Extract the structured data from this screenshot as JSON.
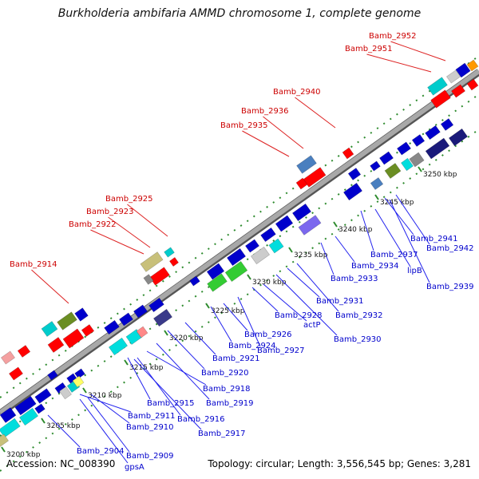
{
  "title": "Burkholderia ambifaria AMMD chromosome 1, complete genome",
  "accession": "Accession: NC_008390",
  "summary": "Topology: circular; Length: 3,556,545 bp; Genes: 3,281",
  "colors": {
    "forward_label": "#cc0000",
    "reverse_label": "#0000cc",
    "leader_forward": "#dd2222",
    "leader_reverse": "#2222ee",
    "backbone": "#999999",
    "tick": "#2e8b2e"
  },
  "position_ticks": [
    "3200 kbp",
    "3205 kbp",
    "3210 kbp",
    "3215 kbp",
    "3220 kbp",
    "3225 kbp",
    "3230 kbp",
    "3235 kbp",
    "3240 kbp",
    "3245 kbp",
    "3250 kbp"
  ],
  "forward_genes": [
    "Bamb_2914",
    "Bamb_2922",
    "Bamb_2923",
    "Bamb_2925",
    "Bamb_2935",
    "Bamb_2936",
    "Bamb_2940",
    "Bamb_2951",
    "Bamb_2952"
  ],
  "reverse_genes": [
    "Bamb_2904",
    "gpsA",
    "Bamb_2909",
    "Bamb_2910",
    "Bamb_2911",
    "Bamb_2915",
    "Bamb_2916",
    "Bamb_2917",
    "Bamb_2918",
    "Bamb_2919",
    "Bamb_2920",
    "Bamb_2921",
    "Bamb_2924",
    "Bamb_2926",
    "Bamb_2927",
    "Bamb_2928",
    "actP",
    "Bamb_2930",
    "Bamb_2931",
    "Bamb_2932",
    "Bamb_2933",
    "Bamb_2934",
    "Bamb_2937",
    "lipB",
    "Bamb_2939",
    "Bamb_2941",
    "Bamb_2942"
  ]
}
